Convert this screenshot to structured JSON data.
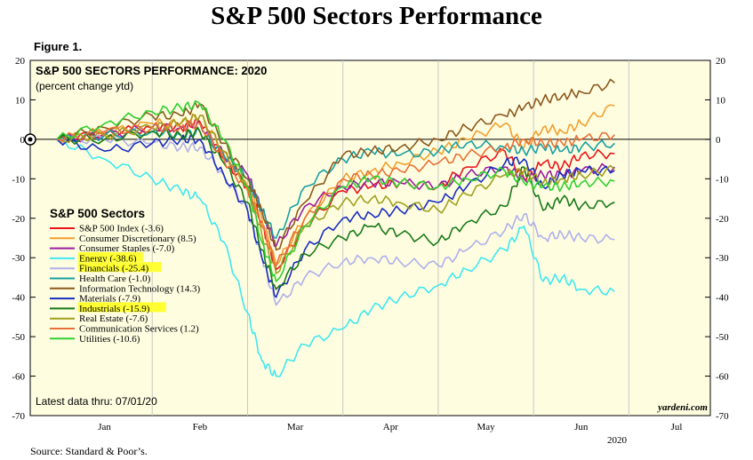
{
  "page": {
    "title": "S&P 500 Sectors Performance",
    "figure_label": "Figure 1.",
    "source": "Source: Standard & Poor’s."
  },
  "chart_data": {
    "type": "line",
    "title": "S&P 500 SECTORS PERFORMANCE: 2020",
    "subtitle": "(percent change ytd)",
    "ylim": [
      -70,
      20
    ],
    "yticks": [
      20,
      10,
      0,
      -10,
      -20,
      -30,
      -40,
      -50,
      -60,
      -70
    ],
    "xlim": [
      0,
      6.5
    ],
    "month_labels": [
      "Jan",
      "Feb",
      "Mar",
      "Apr",
      "May",
      "Jun",
      "Jul"
    ],
    "year_label": "2020",
    "legend_title": "S&P 500 Sectors",
    "legend_position": "left",
    "zero_line": true,
    "note": "Latest data thru: 07/01/20",
    "credit": "yardeni.com",
    "colors": {
      "plot_background": "#fefde0",
      "highlight": "#ffff33"
    },
    "series": [
      {
        "name": "S&P 500 Index (-3.6)",
        "color": "#e8141b",
        "highlight": false,
        "x": [
          0,
          0.5,
          1.0,
          1.3,
          1.5,
          1.75,
          2.0,
          2.15,
          2.3,
          2.6,
          3.0,
          3.3,
          3.6,
          4.0,
          4.3,
          4.7,
          4.9,
          5.1,
          5.3,
          5.5,
          5.85
        ],
        "y": [
          0,
          1.5,
          3,
          3,
          4.5,
          -5,
          -12,
          -21,
          -33,
          -22,
          -13,
          -12,
          -11,
          -12,
          -7,
          -3,
          -10,
          -6,
          -7,
          -4,
          -3.6
        ]
      },
      {
        "name": "Consumer Discretionary (8.5)",
        "color": "#f0a030",
        "highlight": false,
        "x": [
          0,
          0.5,
          1.0,
          1.3,
          1.5,
          1.75,
          2.0,
          2.15,
          2.3,
          2.6,
          3.0,
          3.3,
          3.6,
          4.0,
          4.3,
          4.7,
          4.9,
          5.1,
          5.3,
          5.5,
          5.85
        ],
        "y": [
          0,
          1.5,
          4,
          4,
          6,
          -3,
          -12,
          -20,
          -32,
          -20,
          -10,
          -8,
          -6,
          -3,
          0,
          4,
          -2,
          3,
          2,
          4,
          8.5
        ]
      },
      {
        "name": "Consumer Staples (-7.0)",
        "color": "#9a1ea0",
        "highlight": false,
        "x": [
          0,
          0.5,
          1.0,
          1.3,
          1.5,
          1.75,
          2.0,
          2.15,
          2.3,
          2.6,
          3.0,
          3.3,
          3.6,
          4.0,
          4.3,
          4.7,
          4.9,
          5.1,
          5.3,
          5.5,
          5.85
        ],
        "y": [
          0,
          1,
          3,
          3,
          4,
          -4,
          -9,
          -18,
          -27,
          -17,
          -12,
          -11,
          -11,
          -12,
          -9,
          -7,
          -10,
          -9,
          -9,
          -8,
          -7
        ]
      },
      {
        "name": "Energy (-38.6)",
        "color": "#40e8f0",
        "highlight": true,
        "x": [
          0,
          0.5,
          1.0,
          1.3,
          1.5,
          1.75,
          2.0,
          2.15,
          2.3,
          2.6,
          3.0,
          3.3,
          3.6,
          4.0,
          4.3,
          4.7,
          4.9,
          5.1,
          5.3,
          5.5,
          5.85
        ],
        "y": [
          0,
          -5,
          -10,
          -13,
          -15,
          -26,
          -44,
          -56,
          -60,
          -52,
          -48,
          -43,
          -40,
          -37,
          -33,
          -28,
          -22,
          -36,
          -35,
          -38,
          -38.6
        ]
      },
      {
        "name": "Financials (-25.4)",
        "color": "#b0b0ec",
        "highlight": true,
        "x": [
          0,
          0.5,
          1.0,
          1.3,
          1.5,
          1.75,
          2.0,
          2.15,
          2.3,
          2.6,
          3.0,
          3.3,
          3.6,
          4.0,
          4.3,
          4.7,
          4.9,
          5.1,
          5.3,
          5.5,
          5.85
        ],
        "y": [
          0,
          0,
          -1,
          -2,
          -2,
          -9,
          -18,
          -30,
          -42,
          -35,
          -31,
          -30,
          -31,
          -32,
          -28,
          -23,
          -19,
          -25,
          -24,
          -25,
          -25.4
        ]
      },
      {
        "name": "Health Care (-1.0)",
        "color": "#18a0a0",
        "highlight": false,
        "x": [
          0,
          0.5,
          1.0,
          1.3,
          1.5,
          1.75,
          2.0,
          2.15,
          2.3,
          2.6,
          3.0,
          3.3,
          3.6,
          4.0,
          4.3,
          4.7,
          4.9,
          5.1,
          5.3,
          5.5,
          5.85
        ],
        "y": [
          0,
          1,
          2,
          1,
          2,
          -4,
          -10,
          -18,
          -25,
          -12,
          -5,
          -3,
          -4,
          -3,
          -1,
          -2,
          -3,
          -2,
          -3,
          -2,
          -1
        ]
      },
      {
        "name": "Information Technology (14.3)",
        "color": "#8b5a1e",
        "highlight": false,
        "x": [
          0,
          0.5,
          1.0,
          1.3,
          1.5,
          1.75,
          2.0,
          2.15,
          2.3,
          2.6,
          3.0,
          3.3,
          3.6,
          4.0,
          4.3,
          4.7,
          4.9,
          5.1,
          5.3,
          5.5,
          5.85
        ],
        "y": [
          0,
          3,
          6,
          6,
          9,
          -1,
          -10,
          -18,
          -28,
          -16,
          -4,
          -3,
          -2,
          0,
          3,
          6,
          8,
          10,
          11,
          12,
          14.3
        ]
      },
      {
        "name": "Materials (-7.9)",
        "color": "#1a2ec0",
        "highlight": false,
        "x": [
          0,
          0.5,
          1.0,
          1.3,
          1.5,
          1.75,
          2.0,
          2.15,
          2.3,
          2.6,
          3.0,
          3.3,
          3.6,
          4.0,
          4.3,
          4.7,
          4.9,
          5.1,
          5.3,
          5.5,
          5.85
        ],
        "y": [
          0,
          -3,
          -1,
          0,
          0,
          -9,
          -18,
          -30,
          -40,
          -28,
          -20,
          -19,
          -18,
          -16,
          -12,
          -6,
          -5,
          -12,
          -9,
          -8,
          -7.9
        ]
      },
      {
        "name": "Industrials (-15.9)",
        "color": "#1a7a1a",
        "highlight": true,
        "x": [
          0,
          0.5,
          1.0,
          1.3,
          1.5,
          1.75,
          2.0,
          2.15,
          2.3,
          2.6,
          3.0,
          3.3,
          3.6,
          4.0,
          4.3,
          4.7,
          4.9,
          5.1,
          5.3,
          5.5,
          5.85
        ],
        "y": [
          0,
          0,
          2,
          1,
          2,
          -6,
          -16,
          -28,
          -38,
          -29,
          -25,
          -22,
          -24,
          -26,
          -21,
          -17,
          -7,
          -18,
          -15,
          -17,
          -15.9
        ]
      },
      {
        "name": "Real Estate (-7.6)",
        "color": "#a0a020",
        "highlight": false,
        "x": [
          0,
          0.5,
          1.0,
          1.3,
          1.5,
          1.75,
          2.0,
          2.15,
          2.3,
          2.6,
          3.0,
          3.3,
          3.6,
          4.0,
          4.3,
          4.7,
          4.9,
          5.1,
          5.3,
          5.5,
          5.85
        ],
        "y": [
          0,
          1,
          3,
          4,
          6,
          -3,
          -12,
          -24,
          -34,
          -22,
          -16,
          -15,
          -16,
          -18,
          -14,
          -9,
          -8,
          -11,
          -10,
          -9,
          -7.6
        ]
      },
      {
        "name": "Communication Services (1.2)",
        "color": "#e87038",
        "highlight": false,
        "x": [
          0,
          0.5,
          1.0,
          1.3,
          1.5,
          1.75,
          2.0,
          2.15,
          2.3,
          2.6,
          3.0,
          3.3,
          3.6,
          4.0,
          4.3,
          4.7,
          4.9,
          5.1,
          5.3,
          5.5,
          5.85
        ],
        "y": [
          0,
          2,
          3,
          3,
          4,
          -5,
          -13,
          -22,
          -32,
          -20,
          -10,
          -9,
          -8,
          -6,
          -4,
          -2,
          0,
          -1,
          -1,
          0,
          1.2
        ]
      },
      {
        "name": "Utilities (-10.6)",
        "color": "#30d030",
        "highlight": false,
        "x": [
          0,
          0.5,
          1.0,
          1.3,
          1.5,
          1.75,
          2.0,
          2.15,
          2.3,
          2.6,
          3.0,
          3.3,
          3.6,
          4.0,
          4.3,
          4.7,
          4.9,
          5.1,
          5.3,
          5.5,
          5.85
        ],
        "y": [
          0,
          4,
          7,
          8,
          9,
          0,
          -12,
          -26,
          -36,
          -22,
          -12,
          -10,
          -11,
          -12,
          -10,
          -8,
          -11,
          -12,
          -12,
          -11,
          -10.6
        ]
      }
    ]
  }
}
